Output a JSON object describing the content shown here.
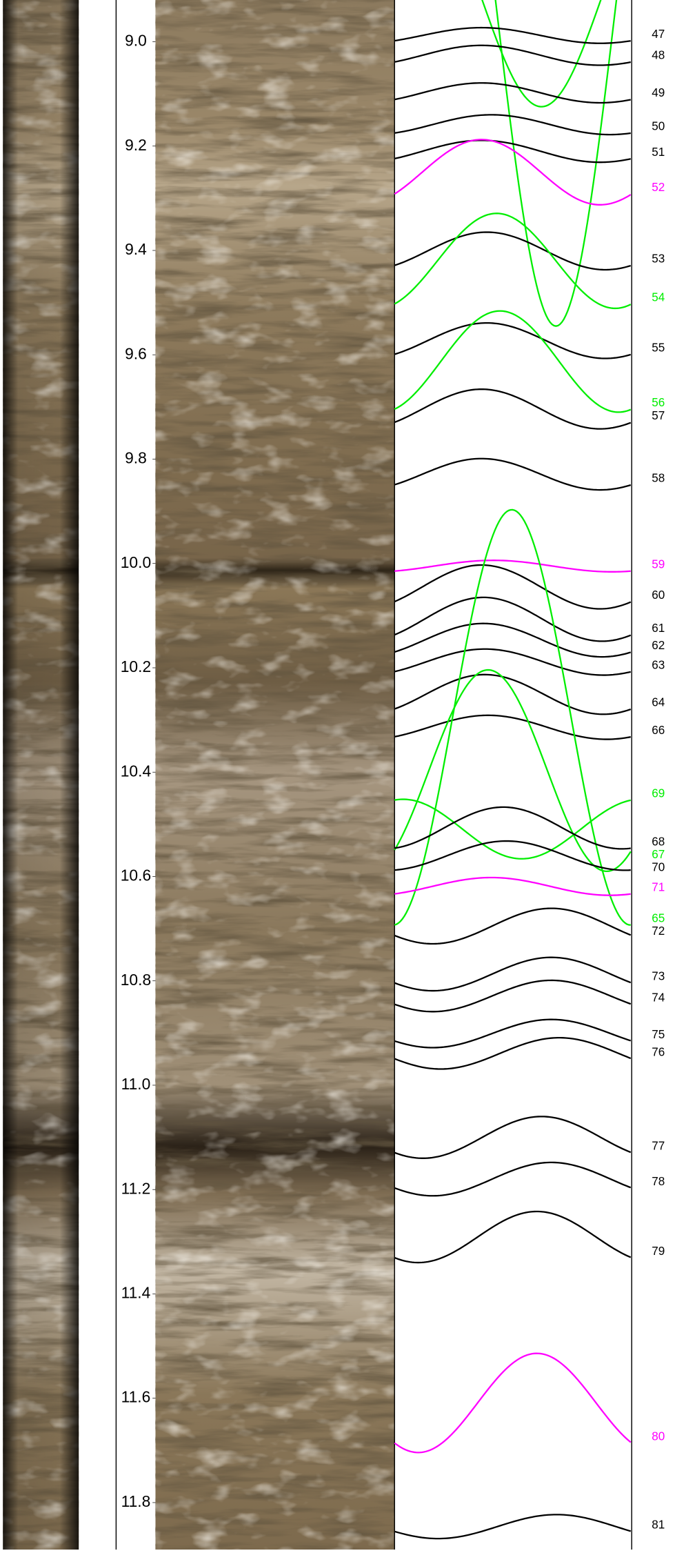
{
  "chart_data": {
    "type": "image_log",
    "ylim": [
      8.92,
      11.89
    ],
    "yticks": [
      {
        "value": 9,
        "label": "9.0"
      },
      9.2,
      9.4,
      9.6,
      9.8,
      {
        "value": 10,
        "label": "10.0"
      },
      10.2,
      10.4,
      10.6,
      10.8,
      {
        "value": 11,
        "label": "11.0"
      },
      11.2,
      11.4,
      11.6,
      11.8
    ],
    "sinusoids": [
      {
        "name": null,
        "color": "#00ee00",
        "depth": 8.92,
        "amplitude": 0.2045,
        "azimuth": 223
      },
      {
        "name": null,
        "color": "#00ee00",
        "depth": 8.939,
        "amplitude": 0.606,
        "azimuth": 245
      },
      {
        "name": "47",
        "color": "#000000",
        "depth": 8.988,
        "amplitude": 0.015,
        "azimuth": 312
      },
      {
        "name": "48",
        "color": "#000000",
        "depth": 9.026,
        "amplitude": 0.019,
        "azimuth": 312
      },
      {
        "name": "49",
        "color": "#000000",
        "depth": 9.098,
        "amplitude": 0.019,
        "azimuth": 312
      },
      {
        "name": "50",
        "color": "#000000",
        "depth": 9.159,
        "amplitude": 0.019,
        "azimuth": 327
      },
      {
        "name": "51",
        "color": "#000000",
        "depth": 9.21,
        "amplitude": 0.021,
        "azimuth": 312
      },
      {
        "name": "52",
        "color": "#ff00ff",
        "depth": 9.25,
        "amplitude": 0.0625,
        "azimuth": 312
      },
      {
        "name": "53",
        "color": "#000000",
        "depth": 9.401,
        "amplitude": 0.036,
        "azimuth": 320
      },
      {
        "name": "54",
        "color": "#00ee00",
        "depth": 9.42,
        "amplitude": 0.091,
        "azimuth": 335
      },
      {
        "name": "55",
        "color": "#000000",
        "depth": 9.573,
        "amplitude": 0.034,
        "azimuth": 320
      },
      {
        "name": "56",
        "color": "#00ee00",
        "depth": 9.613,
        "amplitude": 0.097,
        "azimuth": 340
      },
      {
        "name": "57",
        "color": "#000000",
        "depth": 9.704,
        "amplitude": 0.038,
        "azimuth": 312
      },
      {
        "name": "58",
        "color": "#000000",
        "depth": 9.829,
        "amplitude": 0.03,
        "azimuth": 312
      },
      {
        "name": "59",
        "color": "#ff00ff",
        "depth": 10.005,
        "amplitude": 0.011,
        "azimuth": 330
      },
      {
        "name": "60",
        "color": "#000000",
        "depth": 10.045,
        "amplitude": 0.042,
        "azimuth": 312
      },
      {
        "name": "61",
        "color": "#000000",
        "depth": 10.107,
        "amplitude": 0.042,
        "azimuth": 315
      },
      {
        "name": "62",
        "color": "#000000",
        "depth": 10.147,
        "amplitude": 0.032,
        "azimuth": 315
      },
      {
        "name": "63",
        "color": "#000000",
        "depth": 10.189,
        "amplitude": 0.025,
        "azimuth": 317
      },
      {
        "name": "64",
        "color": "#000000",
        "depth": 10.251,
        "amplitude": 0.038,
        "azimuth": 317
      },
      {
        "name": "66",
        "color": "#000000",
        "depth": 10.314,
        "amplitude": 0.023,
        "azimuth": 322
      },
      {
        "name": "65",
        "color": "#00ee00",
        "depth": 10.295,
        "amplitude": 0.398,
        "azimuth": 358
      },
      {
        "name": "67",
        "color": "#00ee00",
        "depth": 10.397,
        "amplitude": 0.193,
        "azimuth": 322
      },
      {
        "name": "69",
        "color": "#00ee00",
        "depth": 10.509,
        "amplitude": 0.057,
        "azimuth": 193
      },
      {
        "name": "68",
        "color": "#000000",
        "depth": 10.507,
        "amplitude": 0.04,
        "azimuth": 345
      },
      {
        "name": "70",
        "color": "#000000",
        "depth": 10.56,
        "amplitude": 0.028,
        "azimuth": 350
      },
      {
        "name": "71",
        "color": "#ff00ff",
        "depth": 10.619,
        "amplitude": 0.017,
        "azimuth": 327
      },
      {
        "name": "72",
        "color": "#000000",
        "depth": 10.695,
        "amplitude": 0.034,
        "azimuth": 58
      },
      {
        "name": "73",
        "color": "#000000",
        "depth": 10.787,
        "amplitude": 0.032,
        "azimuth": 58
      },
      {
        "name": "74",
        "color": "#000000",
        "depth": 10.829,
        "amplitude": 0.03,
        "azimuth": 58
      },
      {
        "name": "75",
        "color": "#000000",
        "depth": 10.901,
        "amplitude": 0.027,
        "azimuth": 58
      },
      {
        "name": "76",
        "color": "#000000",
        "depth": 10.939,
        "amplitude": 0.03,
        "azimuth": 70
      },
      {
        "name": "77",
        "color": "#000000",
        "depth": 11.1,
        "amplitude": 0.04,
        "azimuth": 43
      },
      {
        "name": "78",
        "color": "#000000",
        "depth": 11.18,
        "amplitude": 0.032,
        "azimuth": 58
      },
      {
        "name": "79",
        "color": "#000000",
        "depth": 11.291,
        "amplitude": 0.049,
        "azimuth": 36
      },
      {
        "name": "80",
        "color": "#ff00ff",
        "depth": 11.609,
        "amplitude": 0.095,
        "azimuth": 36
      },
      {
        "name": "81",
        "color": "#000000",
        "depth": 11.846,
        "amplitude": 0.023,
        "azimuth": 66
      }
    ]
  }
}
